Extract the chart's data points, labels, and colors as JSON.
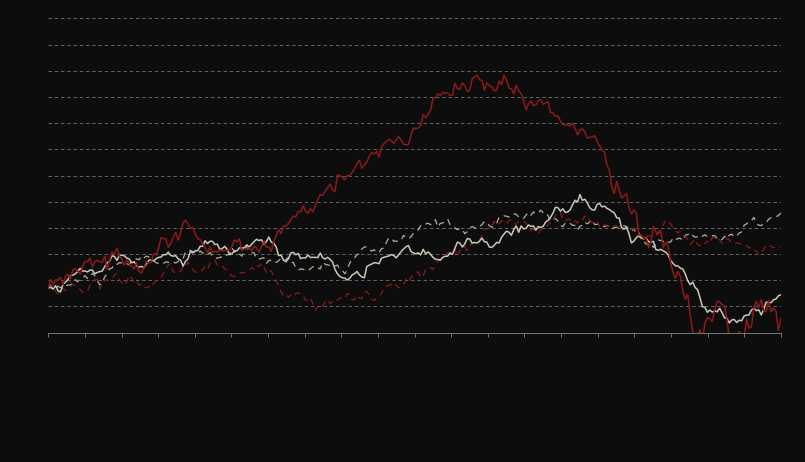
{
  "background_color": "#0d0d0d",
  "plot_bg_color": "#0d0d0d",
  "grid_color": "#888888",
  "n_points": 300,
  "color_dark_gray": "#b0b0a0",
  "color_dark_red": "#8b1a1a",
  "color_light_gray": "#c8c8b8",
  "seed": 42,
  "ylim": [
    -0.08,
    0.62
  ],
  "n_gridlines": 12,
  "figsize": [
    8.05,
    4.62
  ],
  "dpi": 100
}
